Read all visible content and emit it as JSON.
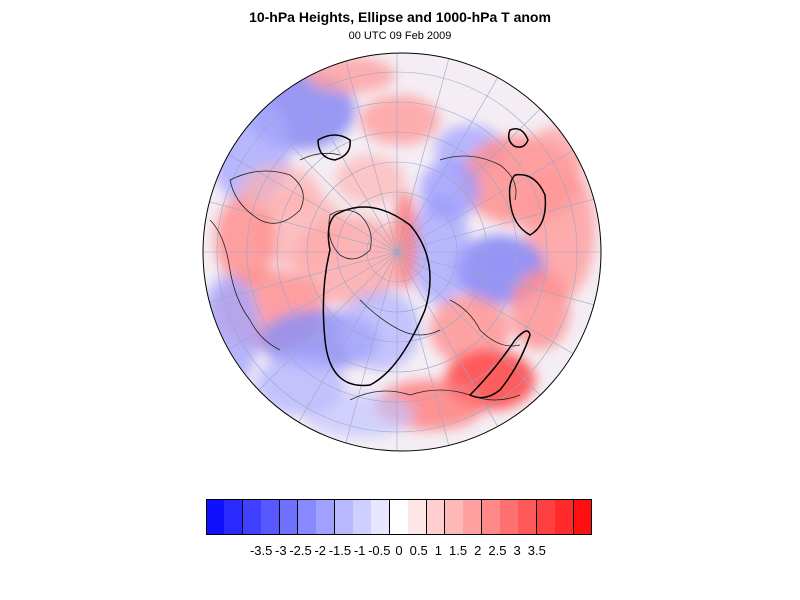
{
  "title": "10-hPa Heights, Ellipse and 1000-hPa T anom",
  "subtitle": "00 UTC 09 Feb 2009",
  "map": {
    "projection": "polar-orthographic-northern-hemisphere",
    "field": "1000-hPa temperature anomaly",
    "contours": "10-hPa geopotential height ellipse",
    "grid": true
  },
  "colorbar": {
    "colors": [
      "#1010ff",
      "#2a2aff",
      "#4040ff",
      "#5858ff",
      "#7070ff",
      "#8888ff",
      "#a0a0ff",
      "#b8b8ff",
      "#cfcfff",
      "#e6e6ff",
      "#ffffff",
      "#ffe6e6",
      "#ffcfcf",
      "#ffb8b8",
      "#ffa0a0",
      "#ff8888",
      "#ff7070",
      "#ff5858",
      "#ff4040",
      "#ff2a2a",
      "#ff1010"
    ],
    "labels": [
      "-3.5",
      "-3",
      "-2.5",
      "-2",
      "-1.5",
      "-1",
      "-0.5",
      "0",
      "0.5",
      "1",
      "1.5",
      "2",
      "2.5",
      "3",
      "3.5"
    ]
  }
}
